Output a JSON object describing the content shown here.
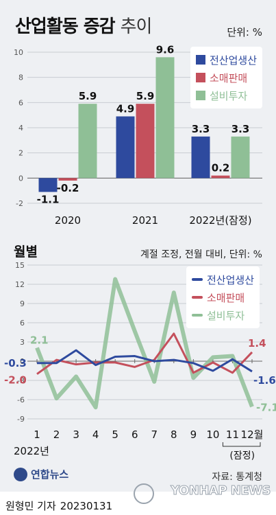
{
  "title_main": "산업활동 증감",
  "title_light": "추이",
  "unit_label": "단위: %",
  "section2_title": "월별",
  "section2_unit": "계절 조정, 전월 대비, 단위: %",
  "legend": [
    "전산업생산",
    "소매판매",
    "설비투자"
  ],
  "colors": {
    "production": "#2e4a9e",
    "retail": "#c4505c",
    "investment": "#8fbf96"
  },
  "chart_data": [
    {
      "type": "bar",
      "categories": [
        "2020",
        "2021",
        "2022년(잠정)"
      ],
      "series": [
        {
          "name": "전산업생산",
          "values": [
            -1.1,
            4.9,
            3.3
          ]
        },
        {
          "name": "소매판매",
          "values": [
            -0.2,
            5.9,
            0.2
          ]
        },
        {
          "name": "설비투자",
          "values": [
            5.9,
            9.6,
            3.3
          ]
        }
      ],
      "ylim": [
        -2,
        10
      ],
      "yticks": [
        -2,
        0,
        2,
        4,
        6,
        8,
        10
      ],
      "labels": [
        [
          "-1.1",
          "-0.2",
          "5.9"
        ],
        [
          "4.9",
          "5.9",
          "9.6"
        ],
        [
          "3.3",
          "0.2",
          "3.3"
        ]
      ],
      "legend_position": "top-right",
      "grid": true
    },
    {
      "type": "line",
      "x": [
        "1",
        "2",
        "3",
        "4",
        "5",
        "6",
        "7",
        "8",
        "9",
        "10",
        "11",
        "12월"
      ],
      "x_period_label": "2022년",
      "x_note": "(잠정)",
      "series": [
        {
          "name": "전산업생산",
          "values": [
            -0.3,
            -0.3,
            1.7,
            -0.6,
            0.7,
            0.8,
            0.0,
            0.2,
            -0.3,
            -1.5,
            0.3,
            -1.6
          ]
        },
        {
          "name": "소매판매",
          "values": [
            -2.0,
            0.2,
            -0.5,
            -0.2,
            -0.2,
            -0.9,
            0.2,
            4.3,
            -1.8,
            -0.2,
            -1.8,
            1.4
          ]
        },
        {
          "name": "설비투자",
          "values": [
            2.1,
            -5.8,
            -2.4,
            -7.2,
            12.8,
            4.7,
            -3.2,
            10.7,
            -2.6,
            0.6,
            0.8,
            -7.1
          ]
        }
      ],
      "ylim": [
        -9,
        15
      ],
      "yticks": [
        -9,
        -6,
        -3,
        0,
        3,
        6,
        9,
        12,
        15
      ],
      "start_labels": [
        "-0.3",
        "-2.0",
        "2.1"
      ],
      "end_labels": [
        "-1.6",
        "1.4",
        "-7.1"
      ],
      "legend_position": "top-right",
      "grid": true
    }
  ],
  "source": "자료: 통계청",
  "logo_text": "연합뉴스",
  "reporter": "원형민 기자",
  "date": "20230131",
  "watermark": "YONHAP NEWS"
}
